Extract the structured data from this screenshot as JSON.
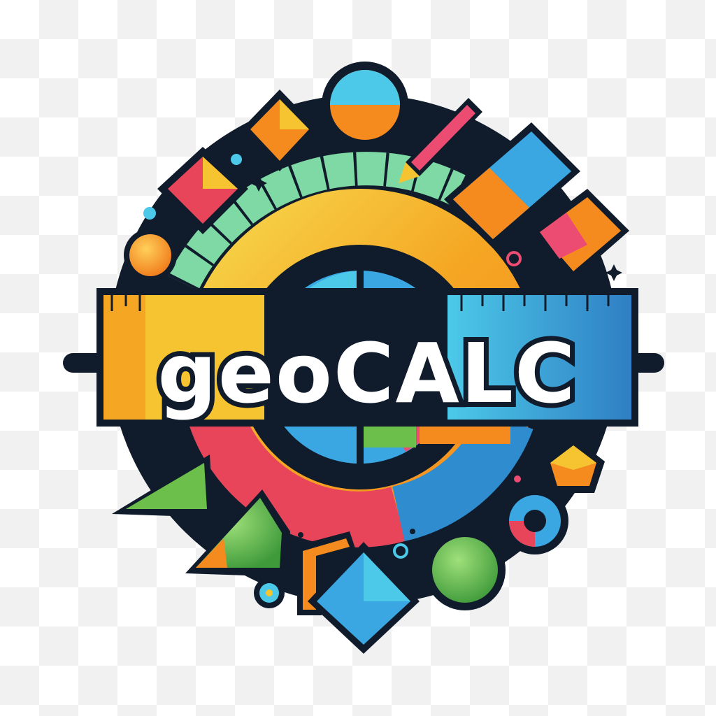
{
  "logo": {
    "wordmark": "geoCALC",
    "colors": {
      "outline": "#101c2b",
      "yellow": "#f6c431",
      "orange": "#f58a1f",
      "red": "#e8455a",
      "pink": "#ec4c72",
      "blue": "#3aa7e3",
      "cyan": "#4cc9e8",
      "green": "#6cbf4a",
      "mint": "#7ed9a4",
      "white": "#ffffff"
    }
  }
}
